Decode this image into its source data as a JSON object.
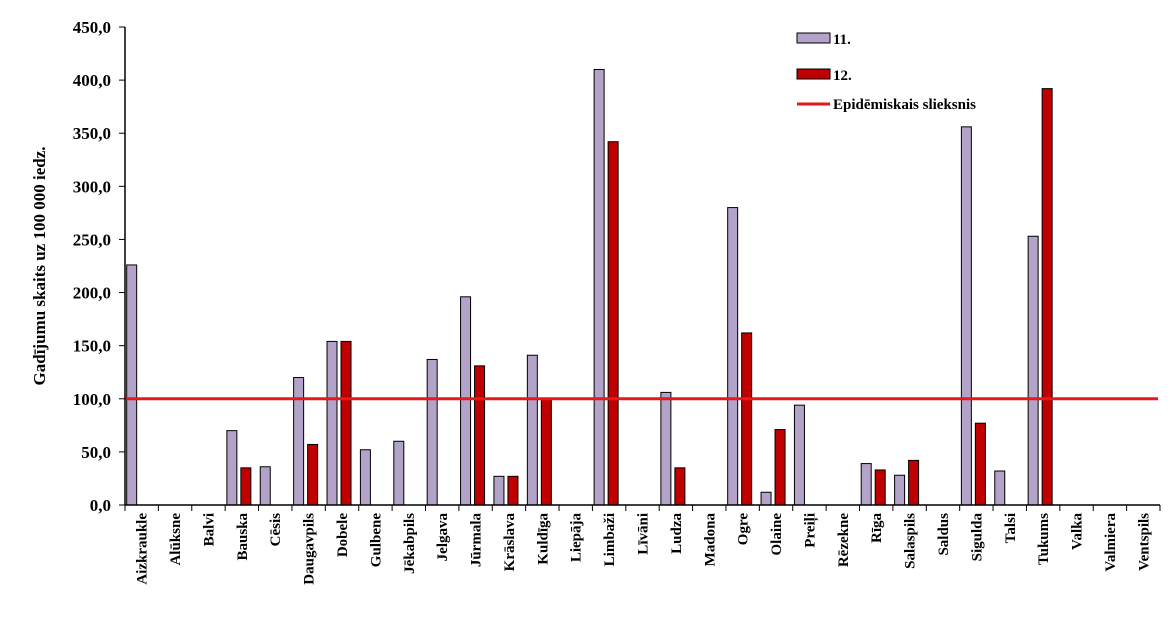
{
  "chart_data": {
    "type": "bar",
    "ylabel": "Gadījumu skaits uz 100 000 iedz.",
    "ylim": [
      0,
      450
    ],
    "yticks": [
      "0,0",
      "50,0",
      "100,0",
      "150,0",
      "200,0",
      "250,0",
      "300,0",
      "350,0",
      "400,0",
      "450,0"
    ],
    "yticks_values": [
      0,
      50,
      100,
      150,
      200,
      250,
      300,
      350,
      400,
      450
    ],
    "grid": false,
    "legend_position": "top-right",
    "categories": [
      "Aizkraukle",
      "Alūksne",
      "Balvi",
      "Bauska",
      "Cēsis",
      "Daugavpils",
      "Dobele",
      "Gulbene",
      "Jēkabpils",
      "Jelgava",
      "Jūrmala",
      "Krāslava",
      "Kuldīga",
      "Liepāja",
      "Limbaži",
      "Līvāni",
      "Ludza",
      "Madona",
      "Ogre",
      "Olaine",
      "Preiļi",
      "Rēzekne",
      "Rīga",
      "Salaspils",
      "Saldus",
      "Sigulda",
      "Talsi",
      "Tukums",
      "Valka",
      "Valmiera",
      "Ventspils"
    ],
    "series": [
      {
        "name": "11.",
        "color": "#b3a3c9",
        "values": [
          226,
          0,
          0,
          70,
          36,
          120,
          154,
          52,
          60,
          137,
          196,
          27,
          141,
          0,
          410,
          0,
          106,
          0,
          280,
          12,
          94,
          0,
          39,
          28,
          0,
          356,
          32,
          253,
          0,
          0,
          0
        ]
      },
      {
        "name": "12.",
        "color": "#c00000",
        "values": [
          0,
          0,
          0,
          35,
          0,
          57,
          154,
          0,
          0,
          0,
          131,
          27,
          100,
          0,
          342,
          0,
          35,
          0,
          162,
          71,
          0,
          0,
          33,
          42,
          0,
          77,
          0,
          392,
          0,
          0,
          0
        ]
      }
    ],
    "threshold": {
      "name": "Epidēmiskais slieksnis",
      "value": 100,
      "color": "#e8171b"
    }
  }
}
